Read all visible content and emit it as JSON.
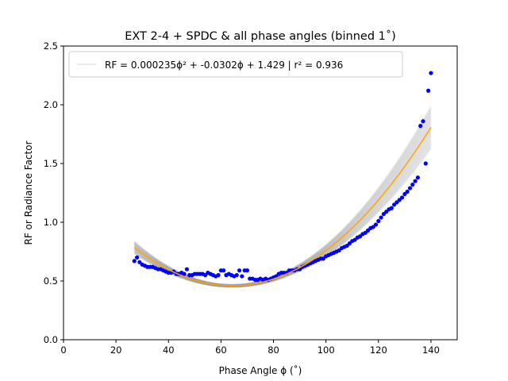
{
  "chart_data": {
    "type": "scatter",
    "title": "EXT 2-4 + SPDC & all phase angles  (binned 1˚)",
    "xlabel": "Phase Angle ϕ (˚)",
    "ylabel": "RF or Radiance Factor",
    "xlim": [
      0,
      150
    ],
    "ylim": [
      0,
      2.5
    ],
    "xticks": [
      0,
      20,
      40,
      60,
      80,
      100,
      120,
      140
    ],
    "yticks": [
      0.0,
      0.5,
      1.0,
      1.5,
      2.0,
      2.5
    ],
    "xtick_labels": [
      "0",
      "20",
      "40",
      "60",
      "80",
      "100",
      "120",
      "140"
    ],
    "ytick_labels": [
      "0.0",
      "0.5",
      "1.0",
      "1.5",
      "2.0",
      "2.5"
    ],
    "grid": false,
    "legend_position": "top-left",
    "legend_label": "RF = 0.000235ϕ² + -0.0302ϕ +   1.429  |  r² = 0.936",
    "fit": {
      "a": 0.000235,
      "b": -0.0302,
      "c": 1.429,
      "r2": 0.936,
      "x_range": [
        27,
        140
      ],
      "color": "#ffa500"
    },
    "uncertainty_band": {
      "color": "#808080",
      "description_free": true
    },
    "points_color": "#0000ff",
    "x": [
      27,
      28,
      29,
      30,
      31,
      32,
      33,
      34,
      35,
      36,
      37,
      38,
      39,
      40,
      41,
      42,
      43,
      44,
      45,
      46,
      47,
      48,
      49,
      50,
      51,
      52,
      53,
      54,
      55,
      56,
      57,
      58,
      59,
      60,
      61,
      62,
      63,
      64,
      65,
      66,
      67,
      68,
      69,
      70,
      71,
      72,
      73,
      74,
      75,
      76,
      77,
      78,
      79,
      80,
      81,
      82,
      83,
      84,
      85,
      86,
      87,
      88,
      89,
      90,
      91,
      92,
      93,
      94,
      95,
      96,
      97,
      98,
      99,
      100,
      101,
      102,
      103,
      104,
      105,
      106,
      107,
      108,
      109,
      110,
      111,
      112,
      113,
      114,
      115,
      116,
      117,
      118,
      119,
      120,
      121,
      122,
      123,
      124,
      125,
      126,
      127,
      128,
      129,
      130,
      131,
      132,
      133,
      134,
      135,
      136,
      137,
      138,
      139,
      140
    ],
    "y": [
      0.67,
      0.7,
      0.66,
      0.64,
      0.63,
      0.62,
      0.62,
      0.62,
      0.61,
      0.6,
      0.6,
      0.59,
      0.58,
      0.57,
      0.57,
      0.58,
      0.56,
      0.56,
      0.57,
      0.56,
      0.6,
      0.55,
      0.55,
      0.56,
      0.56,
      0.56,
      0.56,
      0.55,
      0.57,
      0.56,
      0.55,
      0.54,
      0.55,
      0.59,
      0.59,
      0.55,
      0.56,
      0.55,
      0.54,
      0.55,
      0.59,
      0.54,
      0.59,
      0.59,
      0.52,
      0.52,
      0.51,
      0.51,
      0.52,
      0.51,
      0.52,
      0.51,
      0.52,
      0.53,
      0.54,
      0.56,
      0.57,
      0.57,
      0.57,
      0.59,
      0.59,
      0.59,
      0.6,
      0.6,
      0.62,
      0.63,
      0.64,
      0.65,
      0.66,
      0.67,
      0.68,
      0.69,
      0.69,
      0.71,
      0.72,
      0.73,
      0.74,
      0.75,
      0.76,
      0.78,
      0.79,
      0.8,
      0.82,
      0.84,
      0.85,
      0.87,
      0.88,
      0.9,
      0.91,
      0.93,
      0.95,
      0.96,
      0.98,
      1.01,
      1.04,
      1.07,
      1.09,
      1.11,
      1.12,
      1.15,
      1.17,
      1.19,
      1.21,
      1.24,
      1.26,
      1.29,
      1.32,
      1.35,
      1.38,
      1.82,
      1.86,
      1.5,
      2.12,
      2.27
    ]
  }
}
